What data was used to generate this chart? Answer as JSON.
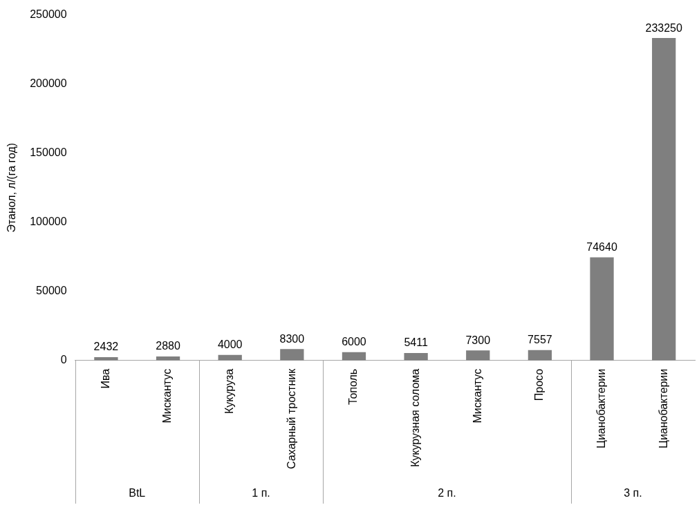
{
  "chart_data": {
    "type": "bar",
    "ylabel": "Этанол, л/(га год)",
    "categories": [
      "Ива",
      "Мискантус",
      "Кукуруза",
      "Сахарный тростник",
      "Тополь",
      "Кукурузная солома",
      "Мискантус",
      "Просо",
      "Цианобактерии",
      "Цианобактерии"
    ],
    "values": [
      2432,
      2880,
      4000,
      8300,
      6000,
      5411,
      7300,
      7557,
      74640,
      233250
    ],
    "color": "#7f7f7f",
    "ylim": [
      0,
      250000
    ],
    "yticks": [
      0,
      50000,
      100000,
      150000,
      200000,
      250000
    ],
    "grid": false,
    "legend": false,
    "data_labels": true,
    "annotations": [
      "BtL",
      "1 п.",
      "2 п.",
      "3 п."
    ]
  }
}
